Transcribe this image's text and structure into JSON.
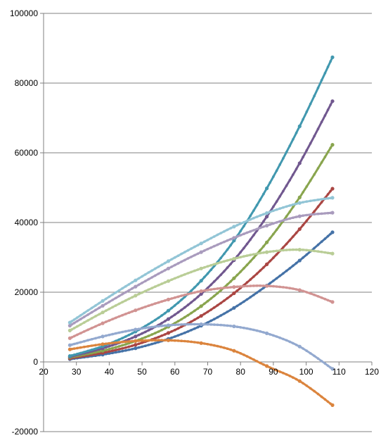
{
  "chart_data": {
    "type": "line",
    "title": "",
    "xlabel": "",
    "ylabel": "",
    "xlim": [
      20,
      120
    ],
    "ylim": [
      -20000,
      100000
    ],
    "grid": "horizontal",
    "x_ticks": [
      20,
      30,
      40,
      50,
      60,
      70,
      80,
      90,
      100,
      110,
      120
    ],
    "y_ticks": [
      -20000,
      0,
      20000,
      40000,
      60000,
      80000,
      100000
    ],
    "x_tick_labels": [
      "20",
      "30",
      "40",
      "50",
      "60",
      "70",
      "80",
      "90",
      "100",
      "110",
      "120"
    ],
    "y_tick_labels": [
      "-20000",
      "0",
      "20000",
      "40000",
      "60000",
      "80000",
      "100000"
    ],
    "x": [
      28,
      38,
      48,
      58,
      68,
      78,
      88,
      98,
      108
    ],
    "series": [
      {
        "color": "#4572A7",
        "values": [
          800,
          2100,
          3900,
          6600,
          10400,
          15500,
          21900,
          29100,
          37200
        ]
      },
      {
        "color": "#AA4643",
        "values": [
          1000,
          2600,
          4900,
          8300,
          13200,
          19700,
          28000,
          38100,
          49700
        ]
      },
      {
        "color": "#89A54E",
        "values": [
          1300,
          3200,
          6000,
          10100,
          16000,
          24000,
          34300,
          47200,
          62300
        ]
      },
      {
        "color": "#71588F",
        "values": [
          1500,
          3900,
          7300,
          12300,
          19500,
          29200,
          41700,
          57000,
          74800
        ]
      },
      {
        "color": "#4198AF",
        "values": [
          1700,
          4500,
          8700,
          14700,
          23300,
          34800,
          49800,
          67600,
          87400
        ]
      },
      {
        "color": "#DB843D",
        "values": [
          3600,
          5100,
          6000,
          6200,
          5400,
          3200,
          -1200,
          -5500,
          -12400
        ]
      },
      {
        "color": "#93A9CF",
        "values": [
          4800,
          7300,
          9300,
          10500,
          10800,
          10200,
          8200,
          4400,
          -2000
        ]
      },
      {
        "color": "#D19392",
        "values": [
          6800,
          11100,
          14800,
          17900,
          20300,
          21500,
          21800,
          20600,
          17200
        ]
      },
      {
        "color": "#B9CD96",
        "values": [
          9000,
          14200,
          19000,
          23200,
          26800,
          29600,
          31500,
          32200,
          31100
        ]
      },
      {
        "color": "#A99BBD",
        "values": [
          10400,
          16100,
          21600,
          26800,
          31500,
          35600,
          39100,
          41800,
          42800
        ]
      },
      {
        "color": "#92C5D6",
        "values": [
          11300,
          17500,
          23400,
          28900,
          34000,
          38800,
          42700,
          45600,
          47100
        ]
      }
    ]
  }
}
